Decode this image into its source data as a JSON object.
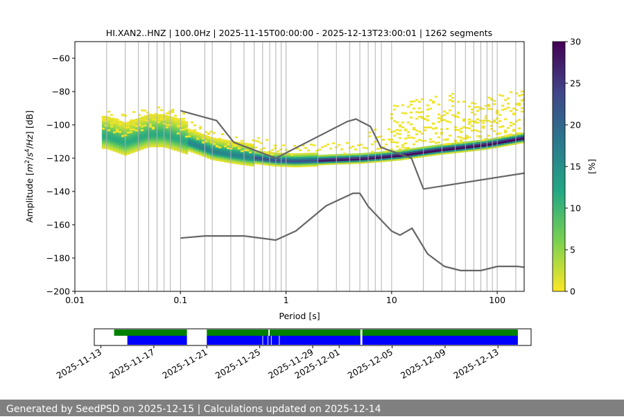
{
  "chart_data": [
    {
      "type": "heatmap",
      "title": "HI.XAN2..HNZ | 100.0Hz | 2025-11-15T00:00:00 - 2025-12-13T23:00:01 | 1262 segments",
      "xlabel": "Period [s]",
      "ylabel": "Amplitude [m²/s⁴/Hz] [dB]",
      "x_scale": "log",
      "xlim": [
        0.01,
        180
      ],
      "ylim": [
        -200,
        -50
      ],
      "x_ticks": [
        0.01,
        0.1,
        1,
        10,
        100
      ],
      "x_tick_labels": [
        "0.01",
        "0.1",
        "1",
        "10",
        "100"
      ],
      "y_ticks": [
        -200,
        -180,
        -160,
        -140,
        -120,
        -100,
        -80,
        -60
      ],
      "y_tick_labels": [
        "−200",
        "−180",
        "−160",
        "−140",
        "−120",
        "−100",
        "−80",
        "−60"
      ],
      "grid": "vertical lines at PSD period bins",
      "grid_periods": [
        0.02,
        0.03,
        0.04,
        0.05,
        0.06,
        0.07,
        0.08,
        0.1,
        0.17,
        0.2,
        0.3,
        0.4,
        0.5,
        0.6,
        0.7,
        0.8,
        0.9,
        1,
        2,
        3,
        4,
        5,
        6,
        7,
        8,
        10,
        20,
        30,
        40,
        50,
        60,
        70,
        80,
        90,
        100,
        150
      ],
      "colorbar": {
        "label": "[%]",
        "range": [
          0,
          30
        ],
        "ticks": [
          0,
          5,
          10,
          15,
          20,
          25,
          30
        ],
        "colormap": "viridis_r",
        "colors": [
          "#fde725",
          "#7ad151",
          "#22a884",
          "#2a788e",
          "#414487",
          "#440154"
        ]
      },
      "density_ridge": {
        "description": "mode of the probabilistic PSD",
        "period": [
          0.02,
          0.03,
          0.05,
          0.07,
          0.1,
          0.15,
          0.2,
          0.3,
          0.5,
          0.8,
          1.2,
          2,
          3,
          5,
          8,
          12,
          20,
          30,
          50,
          80,
          120,
          180
        ],
        "db": [
          -107,
          -111,
          -106,
          -106,
          -109,
          -113,
          -116,
          -118,
          -120,
          -121.5,
          -122,
          -121.5,
          -121,
          -120.5,
          -119.5,
          -118.5,
          -116.5,
          -115,
          -113.5,
          -112,
          -110,
          -108
        ]
      },
      "noise_models": [
        {
          "name": "NHNM",
          "color": "#666666",
          "period": [
            0.1,
            0.22,
            0.32,
            0.8,
            3.8,
            4.6,
            6.3,
            7.9,
            15.4,
            20,
            180
          ],
          "db": [
            -91.5,
            -97.4,
            -110.5,
            -120,
            -98,
            -96.5,
            -101,
            -113.5,
            -120,
            -138.5,
            -129
          ]
        },
        {
          "name": "NLNM",
          "color": "#666666",
          "period": [
            0.1,
            0.17,
            0.4,
            0.8,
            1.24,
            2.4,
            4.3,
            5,
            6,
            10,
            12,
            15.6,
            21.9,
            31.6,
            45,
            70,
            101,
            154,
            180
          ],
          "db": [
            -168,
            -166.7,
            -166.7,
            -169.2,
            -163.7,
            -148.6,
            -141.1,
            -141.1,
            -149,
            -163.8,
            -166.2,
            -162.1,
            -177.5,
            -185,
            -187.5,
            -187.5,
            -185,
            -185,
            -185.5
          ]
        }
      ]
    },
    {
      "type": "timeline",
      "x_labels": [
        "2025-11-13",
        "2025-11-17",
        "2025-11-21",
        "2025-11-25",
        "2025-11-29",
        "2025-12-01",
        "2025-12-05",
        "2025-12-09",
        "2025-12-13"
      ],
      "x_label_days": [
        0,
        4,
        8,
        12,
        16,
        18,
        22,
        26,
        30
      ],
      "xlim_days": [
        -0.5,
        32.5
      ],
      "series": [
        {
          "color": "#008000",
          "segments": [
            [
              1.0,
              6.5
            ],
            [
              8.0,
              12.65
            ],
            [
              12.75,
              19.6
            ],
            [
              19.75,
              31.5
            ]
          ]
        },
        {
          "color": "#0000ff",
          "segments": [
            [
              2.0,
              6.5
            ],
            [
              8.0,
              12.2
            ],
            [
              12.25,
              12.6
            ],
            [
              12.65,
              12.85
            ],
            [
              12.9,
              13.45
            ],
            [
              13.5,
              19.6
            ],
            [
              19.75,
              31.5
            ]
          ]
        }
      ]
    }
  ],
  "footer": {
    "text": "Generated by SeedPSD on 2025-12-15 | Calculations updated on 2025-12-14"
  }
}
